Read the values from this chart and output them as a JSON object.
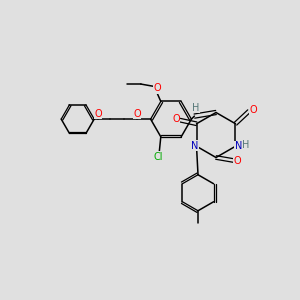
{
  "bg_color": "#e0e0e0",
  "bond_color": "#000000",
  "atom_colors": {
    "O": "#ff0000",
    "N": "#0000bb",
    "Cl": "#00aa00",
    "H_gray": "#557777",
    "C": "#000000"
  },
  "lw_single": 1.1,
  "lw_double": 0.9,
  "font_size": 7.0
}
